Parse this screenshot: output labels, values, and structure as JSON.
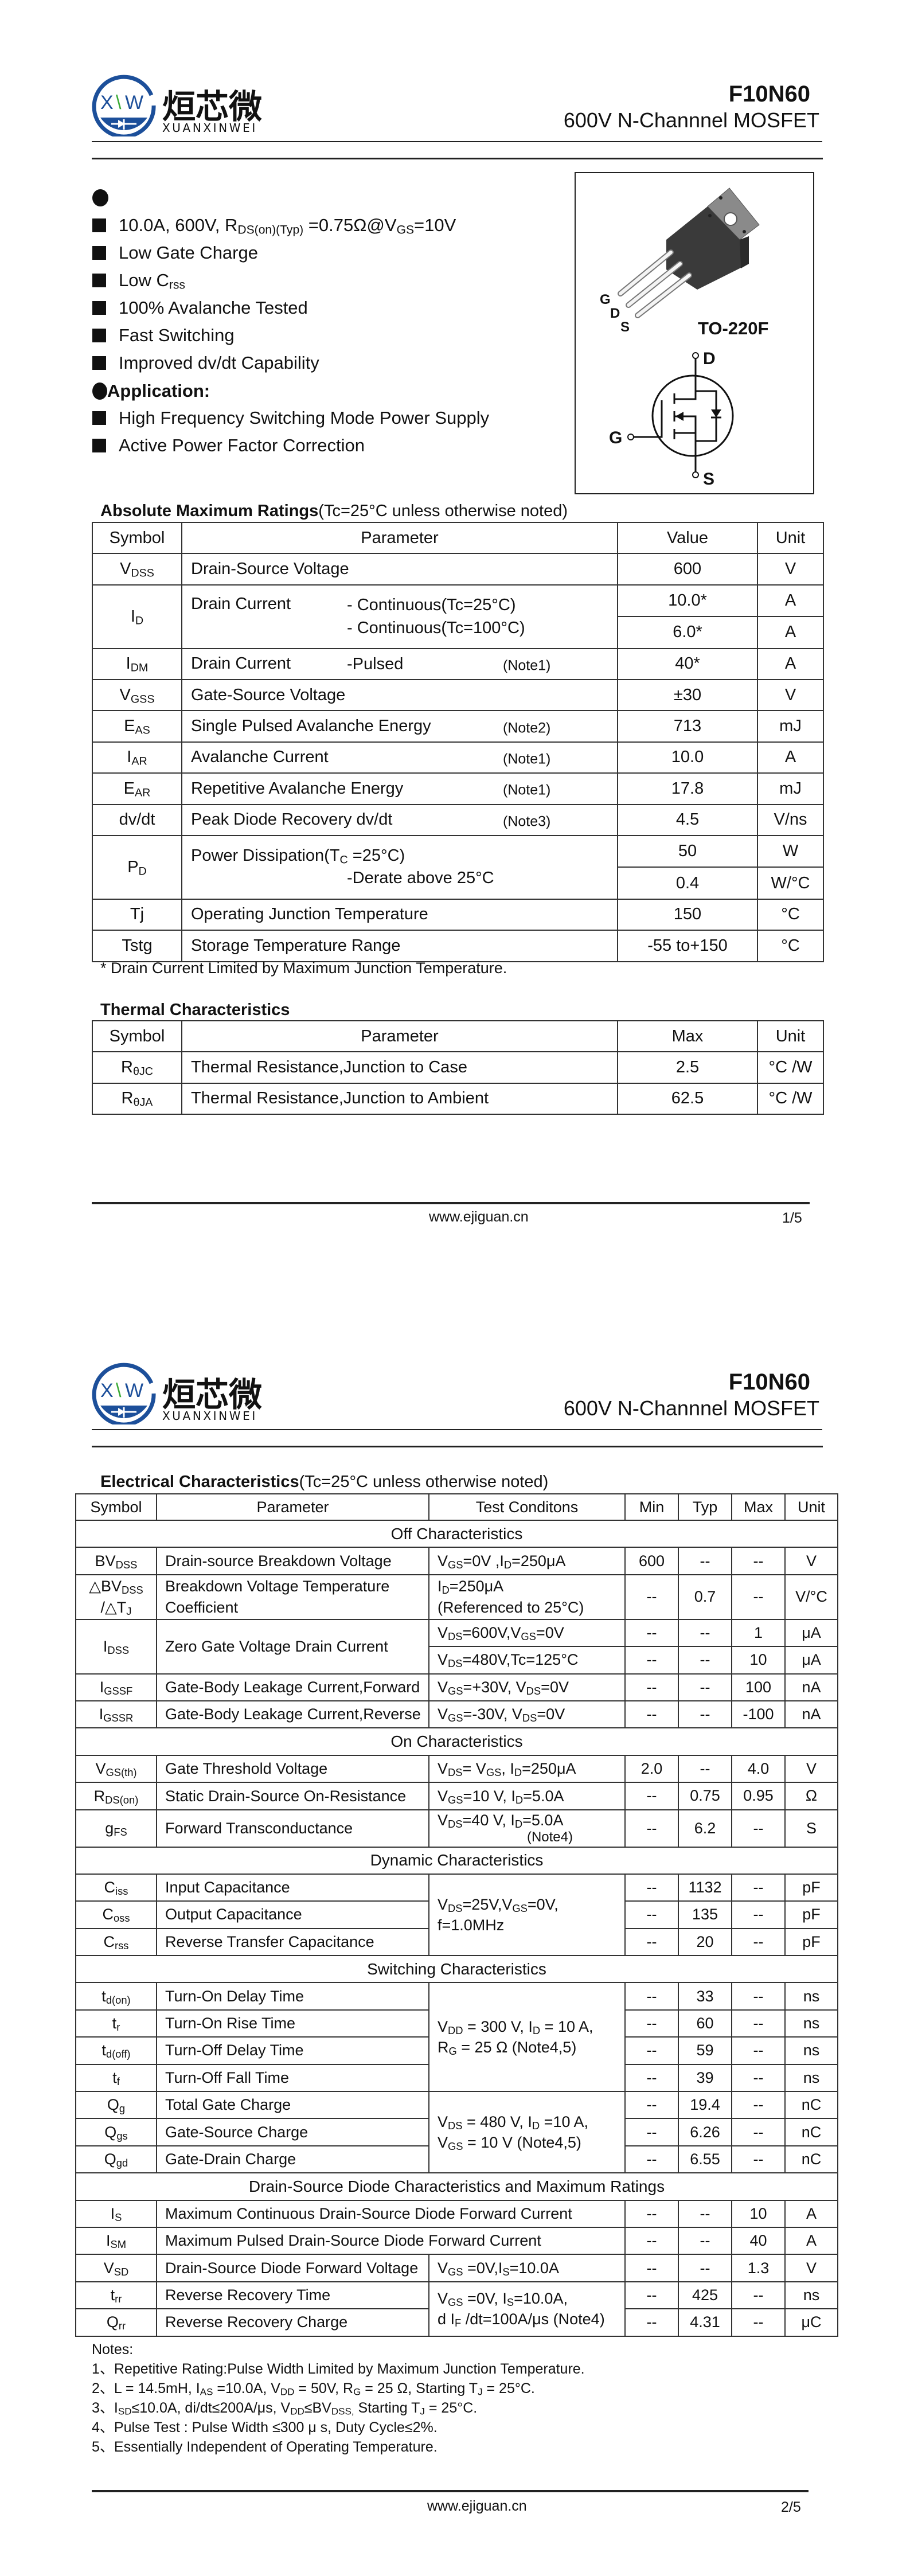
{
  "logo": {
    "mark_left": "X",
    "mark_mid": "\\",
    "mark_right": "W",
    "cn": "烜芯微",
    "en": "XUANXINWEI",
    "colors": {
      "blue": "#1c4f9a",
      "green": "#3aaa35"
    }
  },
  "header": {
    "part": "F10N60",
    "subtitle": "600V N-Channnel MOSFET"
  },
  "features": {
    "items": [
      "10.0A, 600V, R_{DS(on)(Typ)} =0.75Ω@V_{GS}=10V",
      "Low Gate Charge",
      "Low C_{rss}",
      "100% Avalanche Tested",
      "Fast Switching",
      "Improved dv/dt Capability"
    ],
    "application_heading": "Application:",
    "applications": [
      "High Frequency Switching Mode Power Supply",
      "Active Power Factor Correction"
    ]
  },
  "package": {
    "label": "TO-220F",
    "pins": [
      "G",
      "D",
      "S"
    ],
    "schematic": {
      "drain": "D",
      "gate": "G",
      "source": "S"
    }
  },
  "abs_max": {
    "title": "Absolute Maximum Ratings",
    "condition": "(Tc=25°C unless otherwise noted)",
    "headers": [
      "Symbol",
      "Parameter",
      "Value",
      "Unit"
    ],
    "rows": [
      {
        "symbol": "V_{DSS}",
        "parameter": "Drain-Source Voltage",
        "value": "600",
        "unit": "V"
      },
      {
        "symbol": "I_{D}",
        "parameter": "Drain Current",
        "sub": [
          "- Continuous(Tc=25°C)",
          "- Continuous(Tc=100°C)"
        ],
        "values": [
          "10.0*",
          "6.0*"
        ],
        "units": [
          "A",
          "A"
        ]
      },
      {
        "symbol": "I_{DM}",
        "parameter": "Drain Current",
        "sub": [
          "-Pulsed"
        ],
        "note": "(Note1)",
        "value": "40*",
        "unit": "A"
      },
      {
        "symbol": "V_{GSS}",
        "parameter": "Gate-Source Voltage",
        "value": "±30",
        "unit": "V"
      },
      {
        "symbol": "E_{AS}",
        "parameter": "Single Pulsed Avalanche Energy",
        "note": "(Note2)",
        "value": "713",
        "unit": "mJ"
      },
      {
        "symbol": "I_{AR}",
        "parameter": "Avalanche Current",
        "note": "(Note1)",
        "value": "10.0",
        "unit": "A"
      },
      {
        "symbol": "E_{AR}",
        "parameter": "Repetitive Avalanche Energy",
        "note": "(Note1)",
        "value": "17.8",
        "unit": "mJ"
      },
      {
        "symbol": "dv/dt",
        "parameter": "Peak Diode Recovery dv/dt",
        "note": "(Note3)",
        "value": "4.5",
        "unit": "V/ns"
      },
      {
        "symbol": "P_{D}",
        "parameter": "Power Dissipation(T_{C} =25°C)",
        "sub": [
          "-Derate above 25°C"
        ],
        "values": [
          "50",
          "0.4"
        ],
        "units": [
          "W",
          "W/°C"
        ]
      },
      {
        "symbol": "Tj",
        "parameter": "Operating Junction Temperature",
        "value": "150",
        "unit": "°C"
      },
      {
        "symbol": "Tstg",
        "parameter": "Storage Temperature Range",
        "value": "-55 to+150",
        "unit": "°C"
      }
    ],
    "footnote": "* Drain Current Limited by Maximum Junction Temperature."
  },
  "thermal": {
    "title": "Thermal Characteristics",
    "headers": [
      "Symbol",
      "Parameter",
      "Max",
      "Unit"
    ],
    "rows": [
      {
        "symbol": "R_{θJC}",
        "parameter": "Thermal Resistance,Junction to Case",
        "value": "2.5",
        "unit": "°C /W"
      },
      {
        "symbol": "R_{θJA}",
        "parameter": "Thermal Resistance,Junction to Ambient",
        "value": "62.5",
        "unit": "°C /W"
      }
    ]
  },
  "electrical": {
    "title": "Electrical Characteristics",
    "condition": "(Tc=25°C unless otherwise noted)",
    "headers": [
      "Symbol",
      "Parameter",
      "Test Conditons",
      "Min",
      "Typ",
      "Max",
      "Unit"
    ],
    "sections": [
      {
        "title": "Off Characteristics",
        "items": [
          {
            "symbol": "BV_{DSS}",
            "parameter": "Drain-source Breakdown Voltage",
            "condition": "V_{GS}=0V ,I_{D}=250μA",
            "min": "600",
            "typ": "--",
            "max": "--",
            "unit": "V"
          },
          {
            "symbol": "△BV_{DSS}\n/△T_{J}",
            "parameter": "Breakdown Voltage Temperature\nCoefficient",
            "condition": "I_{D}=250μA\n(Referenced to 25°C)",
            "min": "--",
            "typ": "0.7",
            "max": "--",
            "unit": "V/°C"
          },
          {
            "symbol": "I_{DSS}",
            "parameter": "Zero Gate Voltage Drain Current",
            "conditions": [
              {
                "condition": "V_{DS}=600V,V_{GS}=0V",
                "min": "--",
                "typ": "--",
                "max": "1",
                "unit": "μA"
              },
              {
                "condition": "V_{DS}=480V,Tc=125°C",
                "min": "--",
                "typ": "--",
                "max": "10",
                "unit": "μA"
              }
            ]
          },
          {
            "symbol": "I_{GSSF}",
            "parameter": "Gate-Body Leakage Current,Forward",
            "condition": "V_{GS}=+30V, V_{DS}=0V",
            "min": "--",
            "typ": "--",
            "max": "100",
            "unit": "nA"
          },
          {
            "symbol": "I_{GSSR}",
            "parameter": "Gate-Body Leakage Current,Reverse",
            "condition": "V_{GS}=-30V, V_{DS}=0V",
            "min": "--",
            "typ": "--",
            "max": "-100",
            "unit": "nA"
          }
        ]
      },
      {
        "title": "On Characteristics",
        "items": [
          {
            "symbol": "V_{GS(th)}",
            "parameter": "Gate Threshold Voltage",
            "condition": "V_{DS}= V_{GS}, I_{D}=250μA",
            "min": "2.0",
            "typ": "--",
            "max": "4.0",
            "unit": "V"
          },
          {
            "symbol": "R_{DS(on)}",
            "parameter": "Static Drain-Source On-Resistance",
            "condition": "V_{GS}=10 V, I_{D}=5.0A",
            "min": "--",
            "typ": "0.75",
            "max": "0.95",
            "unit": "Ω"
          },
          {
            "symbol": "g_{FS}",
            "parameter": "Forward Transconductance",
            "condition": "V_{DS}=40 V, I_{D}=5.0A",
            "condition_note": "(Note4)",
            "min": "--",
            "typ": "6.2",
            "max": "--",
            "unit": "S"
          }
        ]
      },
      {
        "title": "Dynamic Characteristics",
        "items": [
          {
            "condition": "V_{DS}=25V,V_{GS}=0V,\nf=1.0MHz",
            "rows": [
              {
                "symbol": "C_{iss}",
                "parameter": "Input Capacitance",
                "min": "--",
                "typ": "1132",
                "max": "--",
                "unit": "pF"
              },
              {
                "symbol": "C_{oss}",
                "parameter": "Output Capacitance",
                "min": "--",
                "typ": "135",
                "max": "--",
                "unit": "pF"
              },
              {
                "symbol": "C_{rss}",
                "parameter": "Reverse Transfer Capacitance",
                "min": "--",
                "typ": "20",
                "max": "--",
                "unit": "pF"
              }
            ]
          }
        ]
      },
      {
        "title": "Switching Characteristics",
        "items": [
          {
            "condition": "V_{DD} = 300 V, I_{D} = 10 A,\nR_{G} = 25 Ω    (Note4,5)",
            "rows": [
              {
                "symbol": "t_{d(on)}",
                "parameter": "Turn-On Delay Time",
                "min": "--",
                "typ": "33",
                "max": "--",
                "unit": "ns"
              },
              {
                "symbol": "t_{r}",
                "parameter": "Turn-On Rise Time",
                "min": "--",
                "typ": "60",
                "max": "--",
                "unit": "ns"
              },
              {
                "symbol": "t_{d(off)}",
                "parameter": "Turn-Off Delay Time",
                "min": "--",
                "typ": "59",
                "max": "--",
                "unit": "ns"
              },
              {
                "symbol": "t_{f}",
                "parameter": "Turn-Off Fall Time",
                "min": "--",
                "typ": "39",
                "max": "--",
                "unit": "ns"
              }
            ]
          },
          {
            "condition": "V_{DS} = 480 V, I_{D} =10 A,\nV_{GS} = 10 V   (Note4,5)",
            "rows": [
              {
                "symbol": "Q_{g}",
                "parameter": "Total Gate Charge",
                "min": "--",
                "typ": "19.4",
                "max": "--",
                "unit": "nC"
              },
              {
                "symbol": "Q_{gs}",
                "parameter": "Gate-Source Charge",
                "min": "--",
                "typ": "6.26",
                "max": "--",
                "unit": "nC"
              },
              {
                "symbol": "Q_{gd}",
                "parameter": "Gate-Drain Charge",
                "min": "--",
                "typ": "6.55",
                "max": "--",
                "unit": "nC"
              }
            ]
          }
        ]
      },
      {
        "title": "Drain-Source Diode Characteristics and Maximum Ratings",
        "items": [
          {
            "symbol": "I_{S}",
            "parameter": "Maximum Continuous Drain-Source Diode Forward Current",
            "min": "--",
            "typ": "--",
            "max": "10",
            "unit": "A"
          },
          {
            "symbol": "I_{SM}",
            "parameter": "Maximum Pulsed Drain-Source Diode Forward Current",
            "min": "--",
            "typ": "--",
            "max": "40",
            "unit": "A"
          },
          {
            "symbol": "V_{SD}",
            "parameter": "Drain-Source Diode Forward Voltage",
            "condition": "V_{GS} =0V,I_{S}=10.0A",
            "min": "--",
            "typ": "--",
            "max": "1.3",
            "unit": "V"
          },
          {
            "condition": "V_{GS} =0V, I_{S}=10.0A,\nd I_{F} /dt=100A/μs (Note4)",
            "rows": [
              {
                "symbol": "t_{rr}",
                "parameter": "Reverse Recovery Time",
                "min": "--",
                "typ": "425",
                "max": "--",
                "unit": "ns"
              },
              {
                "symbol": "Q_{rr}",
                "parameter": "Reverse Recovery Charge",
                "min": "--",
                "typ": "4.31",
                "max": "--",
                "unit": "μC"
              }
            ]
          }
        ]
      }
    ]
  },
  "notes": {
    "heading": "Notes:",
    "items": [
      "1、Repetitive Rating:Pulse Width Limited by Maximum Junction Temperature.",
      "2、L = 14.5mH, I_{AS} =10.0A, V_{DD} = 50V, R_{G} = 25 Ω, Starting T_{J} = 25°C.",
      "3、I_{SD}≤10.0A, di/dt≤200A/μs, V_{DD}≤BV_{DSS,} Starting T_{J} = 25°C.",
      "4、Pulse Test : Pulse Width ≤300 μ s, Duty Cycle≤2%.",
      "5、Essentially Independent of Operating Temperature."
    ]
  },
  "footer": {
    "website": "www.ejiguan.cn",
    "pages": [
      "1/5",
      "2/5"
    ]
  }
}
